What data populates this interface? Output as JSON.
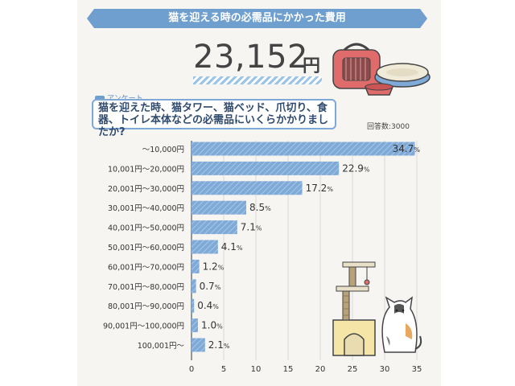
{
  "header": {
    "title": "猫を迎える時の必需品にかかった費用",
    "total_value": "23,152",
    "total_unit": "円",
    "survey_tag": "アンケート",
    "question": "猫を迎えた時、猫タワー、猫ベッド、爪切り、食器、トイレ本体などの必需品にいくらかかりましたか?",
    "respondent_count": "回答数:3000"
  },
  "colors": {
    "banner": "#6f9fcf",
    "bar": "#7fa9d6",
    "bar_stripe": "#a9c7e8",
    "text": "#333333"
  },
  "chart_data": {
    "type": "bar",
    "orientation": "horizontal",
    "categories": [
      "〜10,000円",
      "10,001円〜20,000円",
      "20,001円〜30,000円",
      "30,001円〜40,000円",
      "40,001円〜50,000円",
      "50,001円〜60,000円",
      "60,001円〜70,000円",
      "70,001円〜80,000円",
      "80,001円〜90,000円",
      "90,001円〜100,000円",
      "100,001円〜"
    ],
    "values": [
      34.7,
      22.9,
      17.2,
      8.5,
      7.1,
      4.1,
      1.2,
      0.7,
      0.4,
      1.0,
      2.1
    ],
    "value_labels": [
      "34.7",
      "22.9",
      "17.2",
      "8.5",
      "7.1",
      "4.1",
      "1.2",
      "0.7",
      "0.4",
      "1.0",
      "2.1"
    ],
    "value_unit": "%",
    "xlim": [
      0,
      35
    ],
    "xticks": [
      0,
      5,
      10,
      15,
      20,
      25,
      30,
      35
    ],
    "grid": true
  }
}
